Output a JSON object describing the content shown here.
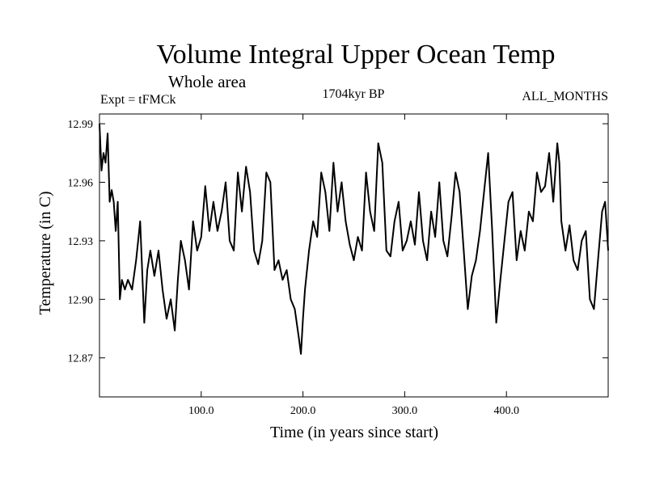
{
  "chart_data": {
    "type": "line",
    "title": "Volume Integral Upper Ocean Temp",
    "subtitle": "Whole area",
    "experiment": "Expt = tFMCk",
    "period": "1704kyr BP",
    "months": "ALL_MONTHS",
    "xlabel": "Time (in years since start)",
    "ylabel": "Temperature (in C)",
    "xlim": [
      0,
      500
    ],
    "ylim": [
      12.85,
      12.995
    ],
    "x_ticks": [
      {
        "value": 100,
        "label": "100.0"
      },
      {
        "value": 200,
        "label": "200.0"
      },
      {
        "value": 300,
        "label": "300.0"
      },
      {
        "value": 400,
        "label": "400.0"
      }
    ],
    "y_ticks": [
      {
        "value": 12.87,
        "label": "12.87"
      },
      {
        "value": 12.9,
        "label": "12.90"
      },
      {
        "value": 12.93,
        "label": "12.93"
      },
      {
        "value": 12.96,
        "label": "12.96"
      },
      {
        "value": 12.99,
        "label": "12.99"
      }
    ],
    "series": [
      {
        "name": "Volume Integral Upper Ocean Temp",
        "color": "#000000",
        "x": [
          0,
          2,
          4,
          6,
          8,
          10,
          12,
          14,
          16,
          18,
          20,
          22,
          25,
          28,
          32,
          36,
          40,
          44,
          47,
          50,
          54,
          58,
          62,
          66,
          70,
          74,
          77,
          80,
          84,
          88,
          92,
          96,
          100,
          104,
          108,
          112,
          116,
          120,
          124,
          128,
          132,
          136,
          140,
          144,
          148,
          152,
          156,
          160,
          164,
          168,
          172,
          176,
          180,
          184,
          188,
          192,
          196,
          198,
          200,
          202,
          206,
          210,
          214,
          218,
          222,
          226,
          230,
          234,
          238,
          242,
          246,
          250,
          254,
          258,
          262,
          266,
          270,
          274,
          278,
          282,
          286,
          290,
          294,
          298,
          302,
          306,
          310,
          314,
          318,
          322,
          326,
          330,
          334,
          338,
          342,
          346,
          350,
          354,
          358,
          362,
          366,
          370,
          374,
          378,
          382,
          386,
          390,
          394,
          398,
          402,
          406,
          410,
          414,
          418,
          422,
          426,
          430,
          434,
          438,
          442,
          446,
          450,
          452,
          454,
          458,
          462,
          466,
          470,
          474,
          478,
          482,
          486,
          490,
          494,
          497,
          500
        ],
        "values": [
          12.99,
          12.966,
          12.975,
          12.97,
          12.985,
          12.95,
          12.956,
          12.95,
          12.935,
          12.95,
          12.9,
          12.91,
          12.905,
          12.91,
          12.905,
          12.92,
          12.94,
          12.888,
          12.915,
          12.925,
          12.912,
          12.925,
          12.905,
          12.89,
          12.9,
          12.884,
          12.91,
          12.93,
          12.92,
          12.905,
          12.94,
          12.925,
          12.932,
          12.958,
          12.935,
          12.95,
          12.935,
          12.945,
          12.96,
          12.93,
          12.925,
          12.965,
          12.945,
          12.968,
          12.955,
          12.925,
          12.918,
          12.93,
          12.965,
          12.96,
          12.915,
          12.92,
          12.91,
          12.915,
          12.9,
          12.895,
          12.88,
          12.872,
          12.89,
          12.905,
          12.925,
          12.94,
          12.932,
          12.965,
          12.955,
          12.935,
          12.97,
          12.945,
          12.96,
          12.94,
          12.928,
          12.92,
          12.932,
          12.925,
          12.965,
          12.945,
          12.935,
          12.98,
          12.97,
          12.925,
          12.922,
          12.94,
          12.95,
          12.925,
          12.93,
          12.94,
          12.928,
          12.955,
          12.93,
          12.92,
          12.945,
          12.932,
          12.96,
          12.93,
          12.922,
          12.942,
          12.965,
          12.955,
          12.925,
          12.895,
          12.912,
          12.92,
          12.935,
          12.955,
          12.975,
          12.935,
          12.888,
          12.91,
          12.93,
          12.95,
          12.955,
          12.92,
          12.935,
          12.925,
          12.945,
          12.94,
          12.965,
          12.955,
          12.958,
          12.975,
          12.95,
          12.98,
          12.97,
          12.94,
          12.925,
          12.938,
          12.92,
          12.915,
          12.93,
          12.935,
          12.9,
          12.895,
          12.92,
          12.945,
          12.95,
          12.925
        ]
      }
    ]
  }
}
